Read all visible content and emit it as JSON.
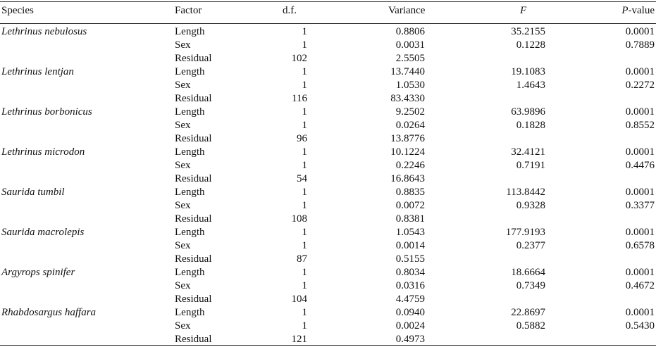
{
  "headers": {
    "species": "Species",
    "factor": "Factor",
    "df": "d.f.",
    "variance": "Variance",
    "f": "F",
    "p_italic": "P",
    "p_suffix": "-value"
  },
  "groups": [
    {
      "species": "Lethrinus nebulosus",
      "rows": [
        {
          "factor": "Length",
          "df": "1",
          "variance": "0.8806",
          "f": "35.2155",
          "p": "0.0001"
        },
        {
          "factor": "Sex",
          "df": "1",
          "variance": "0.0031",
          "f": "0.1228",
          "p": "0.7889"
        },
        {
          "factor": "Residual",
          "df": "102",
          "variance": "2.5505",
          "f": "",
          "p": ""
        }
      ]
    },
    {
      "species": "Lethrinus lentjan",
      "rows": [
        {
          "factor": "Length",
          "df": "1",
          "variance": "13.7440",
          "f": "19.1083",
          "p": "0.0001"
        },
        {
          "factor": "Sex",
          "df": "1",
          "variance": "1.0530",
          "f": "1.4643",
          "p": "0.2272"
        },
        {
          "factor": "Residual",
          "df": "116",
          "variance": "83.4330",
          "f": "",
          "p": ""
        }
      ]
    },
    {
      "species": "Lethrinus borbonicus",
      "rows": [
        {
          "factor": "Length",
          "df": "1",
          "variance": "9.2502",
          "f": "63.9896",
          "p": "0.0001"
        },
        {
          "factor": "Sex",
          "df": "1",
          "variance": "0.0264",
          "f": "0.1828",
          "p": "0.8552"
        },
        {
          "factor": "Residual",
          "df": "96",
          "variance": "13.8776",
          "f": "",
          "p": ""
        }
      ]
    },
    {
      "species": "Lethrinus microdon",
      "rows": [
        {
          "factor": "Length",
          "df": "1",
          "variance": "10.1224",
          "f": "32.4121",
          "p": "0.0001"
        },
        {
          "factor": "Sex",
          "df": "1",
          "variance": "0.2246",
          "f": "0.7191",
          "p": "0.4476"
        },
        {
          "factor": "Residual",
          "df": "54",
          "variance": "16.8643",
          "f": "",
          "p": ""
        }
      ]
    },
    {
      "species": "Saurida tumbil",
      "rows": [
        {
          "factor": "Length",
          "df": "1",
          "variance": "0.8835",
          "f": "113.8442",
          "p": "0.0001"
        },
        {
          "factor": "Sex",
          "df": "1",
          "variance": "0.0072",
          "f": "0.9328",
          "p": "0.3377"
        },
        {
          "factor": "Residual",
          "df": "108",
          "variance": "0.8381",
          "f": "",
          "p": ""
        }
      ]
    },
    {
      "species": "Saurida macrolepis",
      "rows": [
        {
          "factor": "Length",
          "df": "1",
          "variance": "1.0543",
          "f": "177.9193",
          "p": "0.0001"
        },
        {
          "factor": "Sex",
          "df": "1",
          "variance": "0.0014",
          "f": "0.2377",
          "p": "0.6578"
        },
        {
          "factor": "Residual",
          "df": "87",
          "variance": "0.5155",
          "f": "",
          "p": ""
        }
      ]
    },
    {
      "species": "Argyrops spinifer",
      "rows": [
        {
          "factor": "Length",
          "df": "1",
          "variance": "0.8034",
          "f": "18.6664",
          "p": "0.0001"
        },
        {
          "factor": "Sex",
          "df": "1",
          "variance": "0.0316",
          "f": "0.7349",
          "p": "0.4672"
        },
        {
          "factor": "Residual",
          "df": "104",
          "variance": "4.4759",
          "f": "",
          "p": ""
        }
      ]
    },
    {
      "species": "Rhabdosargus haffara",
      "rows": [
        {
          "factor": "Length",
          "df": "1",
          "variance": "0.0940",
          "f": "22.8697",
          "p": "0.0001"
        },
        {
          "factor": "Sex",
          "df": "1",
          "variance": "0.0024",
          "f": "0.5882",
          "p": "0.5430"
        },
        {
          "factor": "Residual",
          "df": "121",
          "variance": "0.4973",
          "f": "",
          "p": ""
        }
      ]
    }
  ]
}
